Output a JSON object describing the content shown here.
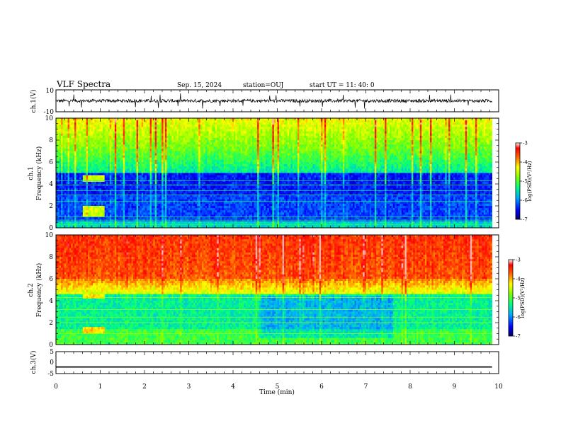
{
  "header": {
    "title": "VLF Spectra",
    "date": "Sep. 15, 2024",
    "station": "station=OUJ",
    "start": "start  UT =   11: 40: 0"
  },
  "chart_data": [
    {
      "type": "line",
      "name": "ch1-waveform",
      "ylabel": "ch.1(V)",
      "ylim": [
        -10,
        10
      ],
      "y_ticks": [
        "10",
        "-10"
      ],
      "baseline_v": 0,
      "noise_amplitude_v": 2.5
    },
    {
      "type": "heatmap",
      "name": "ch1-spectrogram",
      "ylabel_top": "ch.1",
      "ylabel": "Frequency (kHz)",
      "ylim": [
        0,
        10
      ],
      "y_ticks": [
        "0",
        "2",
        "4",
        "6",
        "8",
        "10"
      ],
      "colorbar": {
        "label": "log(PSD)(V²/Hz)",
        "range": [
          -7,
          -3
        ],
        "ticks": [
          "-3",
          "-4",
          "-5",
          "-6",
          "-7"
        ]
      }
    },
    {
      "type": "heatmap",
      "name": "ch2-spectrogram",
      "ylabel_top": "ch.2",
      "ylabel": "Frequency (kHz)",
      "ylim": [
        0,
        10
      ],
      "y_ticks": [
        "0",
        "2",
        "4",
        "6",
        "8",
        "10"
      ],
      "colorbar": {
        "label": "log(PSD)(V²/Hz)",
        "range": [
          -7,
          -3
        ],
        "ticks": [
          "-3",
          "-4",
          "-5",
          "-6",
          "-7"
        ]
      }
    },
    {
      "type": "line",
      "name": "ch3-level",
      "ylabel": "ch.3(V)",
      "ylim": [
        -5,
        5
      ],
      "y_ticks": [
        "5",
        "0",
        "-5"
      ],
      "level_v": -2
    }
  ],
  "x_axis": {
    "label": "Time (min)",
    "xlim": [
      0,
      10
    ],
    "data_end_min": 9.85,
    "ticks": [
      "0",
      "1",
      "2",
      "3",
      "4",
      "5",
      "6",
      "7",
      "8",
      "9",
      "10"
    ]
  }
}
